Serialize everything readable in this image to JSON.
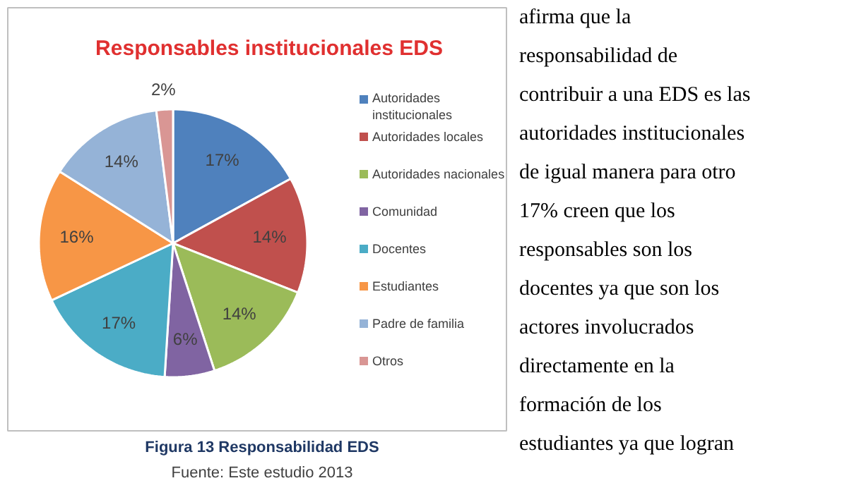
{
  "chart_data": {
    "type": "pie",
    "title": "Responsables institucionales EDS",
    "categories": [
      "Autoridades institucionales",
      "Autoridades locales",
      "Autoridades nacionales",
      "Comunidad",
      "Docentes",
      "Estudiantes",
      "Padre de familia",
      "Otros"
    ],
    "values": [
      17,
      14,
      14,
      6,
      17,
      16,
      14,
      2
    ],
    "value_labels": [
      "17%",
      "14%",
      "14%",
      "6%",
      "17%",
      "16%",
      "14%",
      "2%"
    ],
    "colors": [
      "#4f81bd",
      "#c0504d",
      "#9bbb59",
      "#8064a2",
      "#4bacc6",
      "#f79646",
      "#95b3d7",
      "#d99694"
    ],
    "legend": "right",
    "annotations": [
      "Figura 13 Responsabilidad EDS",
      "Fuente: Este estudio 2013",
      "afirma que la",
      "responsabilidad de",
      "contribuir a una EDS es las",
      "autoridades institucionales",
      "de igual manera para otro",
      "17% creen que los",
      "responsables son los",
      "docentes ya que son los",
      "actores involucrados",
      "directamente en la",
      "formación de los",
      "estudiantes ya que logran"
    ]
  }
}
